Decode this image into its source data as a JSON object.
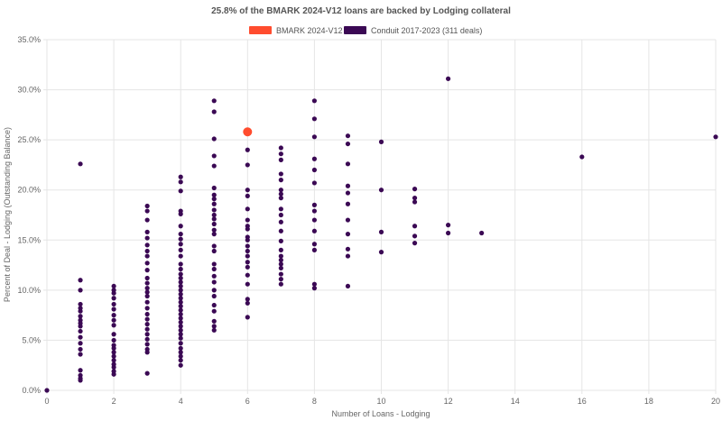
{
  "chart_data": {
    "type": "scatter",
    "title": "25.8% of the BMARK 2024-V12 loans are backed by Lodging collateral",
    "xlabel": "Number of Loans - Lodging",
    "ylabel": "Percent of Deal - Lodging (Outstanding Balance)",
    "xlim": [
      0,
      20
    ],
    "ylim": [
      0,
      35
    ],
    "x_ticks": [
      "0",
      "2",
      "4",
      "6",
      "8",
      "10",
      "12",
      "14",
      "16",
      "18",
      "20"
    ],
    "y_ticks": [
      "0.0%",
      "5.0%",
      "10.0%",
      "15.0%",
      "20.0%",
      "25.0%",
      "30.0%",
      "35.0%"
    ],
    "grid": true,
    "legend_position": "top-center",
    "series": [
      {
        "name": "BMARK 2024-V12",
        "color": "#ff4c2e",
        "points": [
          [
            6,
            25.8
          ]
        ]
      },
      {
        "name": "Conduit 2017-2023 (311 deals)",
        "color": "#3b0954",
        "points": [
          [
            0,
            0.0
          ],
          [
            1,
            22.6
          ],
          [
            1,
            11.0
          ],
          [
            1,
            10.0
          ],
          [
            1,
            8.6
          ],
          [
            1,
            8.2
          ],
          [
            1,
            7.9
          ],
          [
            1,
            7.4
          ],
          [
            1,
            7.0
          ],
          [
            1,
            6.7
          ],
          [
            1,
            6.4
          ],
          [
            1,
            5.9
          ],
          [
            1,
            5.3
          ],
          [
            1,
            4.7
          ],
          [
            1,
            4.1
          ],
          [
            1,
            3.6
          ],
          [
            1,
            2.0
          ],
          [
            1,
            1.5
          ],
          [
            1,
            1.2
          ],
          [
            1,
            1.0
          ],
          [
            2,
            10.4
          ],
          [
            2,
            10.0
          ],
          [
            2,
            9.7
          ],
          [
            2,
            9.2
          ],
          [
            2,
            8.6
          ],
          [
            2,
            8.1
          ],
          [
            2,
            7.5
          ],
          [
            2,
            7.0
          ],
          [
            2,
            6.5
          ],
          [
            2,
            5.6
          ],
          [
            2,
            5.0
          ],
          [
            2,
            4.5
          ],
          [
            2,
            4.2
          ],
          [
            2,
            3.8
          ],
          [
            2,
            3.4
          ],
          [
            2,
            3.0
          ],
          [
            2,
            2.6
          ],
          [
            2,
            2.3
          ],
          [
            2,
            1.9
          ],
          [
            2,
            1.6
          ],
          [
            3,
            18.4
          ],
          [
            3,
            17.9
          ],
          [
            3,
            17.0
          ],
          [
            3,
            15.8
          ],
          [
            3,
            15.2
          ],
          [
            3,
            14.5
          ],
          [
            3,
            13.9
          ],
          [
            3,
            13.4
          ],
          [
            3,
            12.7
          ],
          [
            3,
            12.0
          ],
          [
            3,
            11.2
          ],
          [
            3,
            10.7
          ],
          [
            3,
            10.2
          ],
          [
            3,
            9.8
          ],
          [
            3,
            9.4
          ],
          [
            3,
            8.8
          ],
          [
            3,
            8.2
          ],
          [
            3,
            7.6
          ],
          [
            3,
            7.1
          ],
          [
            3,
            6.6
          ],
          [
            3,
            6.1
          ],
          [
            3,
            5.6
          ],
          [
            3,
            5.1
          ],
          [
            3,
            4.6
          ],
          [
            3,
            4.1
          ],
          [
            3,
            3.8
          ],
          [
            3,
            1.7
          ],
          [
            4,
            21.3
          ],
          [
            4,
            20.8
          ],
          [
            4,
            19.9
          ],
          [
            4,
            17.9
          ],
          [
            4,
            17.6
          ],
          [
            4,
            16.4
          ],
          [
            4,
            15.6
          ],
          [
            4,
            15.1
          ],
          [
            4,
            14.6
          ],
          [
            4,
            14.0
          ],
          [
            4,
            13.4
          ],
          [
            4,
            12.6
          ],
          [
            4,
            12.1
          ],
          [
            4,
            11.6
          ],
          [
            4,
            11.2
          ],
          [
            4,
            10.8
          ],
          [
            4,
            10.4
          ],
          [
            4,
            10.0
          ],
          [
            4,
            9.6
          ],
          [
            4,
            9.2
          ],
          [
            4,
            8.8
          ],
          [
            4,
            8.4
          ],
          [
            4,
            8.0
          ],
          [
            4,
            7.6
          ],
          [
            4,
            7.2
          ],
          [
            4,
            6.8
          ],
          [
            4,
            6.4
          ],
          [
            4,
            6.0
          ],
          [
            4,
            5.6
          ],
          [
            4,
            5.2
          ],
          [
            4,
            4.7
          ],
          [
            4,
            4.2
          ],
          [
            4,
            3.8
          ],
          [
            4,
            3.4
          ],
          [
            4,
            3.0
          ],
          [
            4,
            2.5
          ],
          [
            5,
            28.9
          ],
          [
            5,
            27.8
          ],
          [
            5,
            25.1
          ],
          [
            5,
            23.4
          ],
          [
            5,
            22.4
          ],
          [
            5,
            20.2
          ],
          [
            5,
            19.5
          ],
          [
            5,
            19.1
          ],
          [
            5,
            18.6
          ],
          [
            5,
            18.0
          ],
          [
            5,
            17.5
          ],
          [
            5,
            17.1
          ],
          [
            5,
            16.6
          ],
          [
            5,
            16.0
          ],
          [
            5,
            15.6
          ],
          [
            5,
            14.4
          ],
          [
            5,
            13.9
          ],
          [
            5,
            12.6
          ],
          [
            5,
            12.1
          ],
          [
            5,
            11.4
          ],
          [
            5,
            10.8
          ],
          [
            5,
            10.0
          ],
          [
            5,
            9.4
          ],
          [
            5,
            8.5
          ],
          [
            5,
            7.9
          ],
          [
            5,
            6.9
          ],
          [
            5,
            6.4
          ],
          [
            5,
            6.0
          ],
          [
            6,
            24.0
          ],
          [
            6,
            22.5
          ],
          [
            6,
            20.0
          ],
          [
            6,
            19.4
          ],
          [
            6,
            18.1
          ],
          [
            6,
            17.0
          ],
          [
            6,
            16.4
          ],
          [
            6,
            16.1
          ],
          [
            6,
            15.3
          ],
          [
            6,
            15.0
          ],
          [
            6,
            14.4
          ],
          [
            6,
            13.9
          ],
          [
            6,
            13.4
          ],
          [
            6,
            12.8
          ],
          [
            6,
            12.3
          ],
          [
            6,
            11.5
          ],
          [
            6,
            10.6
          ],
          [
            6,
            9.1
          ],
          [
            6,
            8.7
          ],
          [
            6,
            7.3
          ],
          [
            7,
            24.2
          ],
          [
            7,
            23.6
          ],
          [
            7,
            23.0
          ],
          [
            7,
            21.6
          ],
          [
            7,
            21.0
          ],
          [
            7,
            20.0
          ],
          [
            7,
            19.6
          ],
          [
            7,
            19.2
          ],
          [
            7,
            18.1
          ],
          [
            7,
            17.5
          ],
          [
            7,
            16.8
          ],
          [
            7,
            15.9
          ],
          [
            7,
            14.9
          ],
          [
            7,
            14.0
          ],
          [
            7,
            13.4
          ],
          [
            7,
            13.0
          ],
          [
            7,
            12.6
          ],
          [
            7,
            12.2
          ],
          [
            7,
            11.6
          ],
          [
            7,
            11.1
          ],
          [
            7,
            10.6
          ],
          [
            8,
            28.9
          ],
          [
            8,
            27.1
          ],
          [
            8,
            25.3
          ],
          [
            8,
            23.1
          ],
          [
            8,
            22.0
          ],
          [
            8,
            20.7
          ],
          [
            8,
            18.5
          ],
          [
            8,
            17.9
          ],
          [
            8,
            17.0
          ],
          [
            8,
            15.9
          ],
          [
            8,
            14.6
          ],
          [
            8,
            14.0
          ],
          [
            8,
            10.6
          ],
          [
            8,
            10.2
          ],
          [
            9,
            25.4
          ],
          [
            9,
            24.6
          ],
          [
            9,
            22.6
          ],
          [
            9,
            20.4
          ],
          [
            9,
            19.7
          ],
          [
            9,
            18.6
          ],
          [
            9,
            17.0
          ],
          [
            9,
            15.6
          ],
          [
            9,
            14.1
          ],
          [
            9,
            13.4
          ],
          [
            9,
            10.4
          ],
          [
            10,
            24.8
          ],
          [
            10,
            20.0
          ],
          [
            10,
            15.8
          ],
          [
            10,
            13.8
          ],
          [
            11,
            20.1
          ],
          [
            11,
            19.2
          ],
          [
            11,
            18.8
          ],
          [
            11,
            16.4
          ],
          [
            11,
            15.4
          ],
          [
            11,
            14.7
          ],
          [
            12,
            31.1
          ],
          [
            12,
            16.5
          ],
          [
            12,
            15.7
          ],
          [
            13,
            15.7
          ],
          [
            16,
            23.3
          ],
          [
            20,
            25.3
          ]
        ]
      }
    ]
  }
}
